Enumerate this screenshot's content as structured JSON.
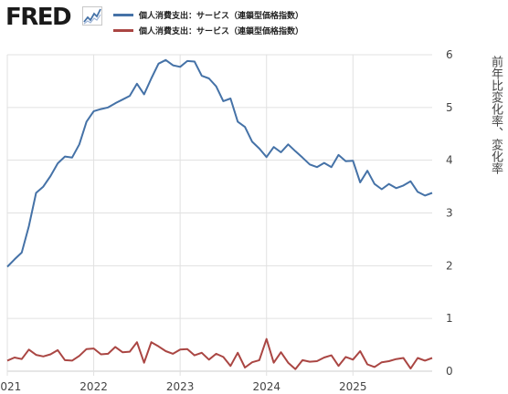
{
  "header": {
    "logo_text": "FRED",
    "logo_icon": "trend-line-chart-icon"
  },
  "colors": {
    "series1": "#4572a7",
    "series2": "#aa4643",
    "grid": "#e1e1e1",
    "axis_text": "#444444"
  },
  "chart_data": {
    "type": "line",
    "title": "",
    "xlabel": "",
    "ylabel": "前年比変化率、変化率",
    "x_ticks": [
      "2021",
      "2022",
      "2023",
      "2024",
      "2025"
    ],
    "y_ticks": [
      "0",
      "1",
      "2",
      "3",
      "4",
      "5",
      "6"
    ],
    "ylim": [
      0,
      6
    ],
    "xlim": [
      "2021-01",
      "2025-12"
    ],
    "grid": true,
    "legend": "top",
    "series": [
      {
        "name": "個人消費支出：サービス（連鎖型価格指数）",
        "x": [
          "2021-01",
          "2021-02",
          "2021-03",
          "2021-04",
          "2021-05",
          "2021-06",
          "2021-07",
          "2021-08",
          "2021-09",
          "2021-10",
          "2021-11",
          "2021-12",
          "2022-01",
          "2022-02",
          "2022-03",
          "2022-04",
          "2022-05",
          "2022-06",
          "2022-07",
          "2022-08",
          "2022-09",
          "2022-10",
          "2022-11",
          "2022-12",
          "2023-01",
          "2023-02",
          "2023-03",
          "2023-04",
          "2023-05",
          "2023-06",
          "2023-07",
          "2023-08",
          "2023-09",
          "2023-10",
          "2023-11",
          "2023-12",
          "2024-01",
          "2024-02",
          "2024-03",
          "2024-04",
          "2024-05",
          "2024-06",
          "2024-07",
          "2024-08",
          "2024-09",
          "2024-10",
          "2024-11",
          "2024-12",
          "2025-01",
          "2025-02",
          "2025-03",
          "2025-04",
          "2025-05",
          "2025-06",
          "2025-07",
          "2025-08",
          "2025-09",
          "2025-10",
          "2025-11",
          "2025-12"
        ],
        "values": [
          1.98,
          2.12,
          2.25,
          2.75,
          3.38,
          3.5,
          3.7,
          3.94,
          4.07,
          4.05,
          4.3,
          4.73,
          4.93,
          4.97,
          5.0,
          5.08,
          5.15,
          5.22,
          5.45,
          5.25,
          5.55,
          5.83,
          5.9,
          5.8,
          5.77,
          5.88,
          5.87,
          5.6,
          5.55,
          5.4,
          5.12,
          5.17,
          4.73,
          4.63,
          4.35,
          4.22,
          4.06,
          4.25,
          4.15,
          4.3,
          4.17,
          4.05,
          3.92,
          3.87,
          3.95,
          3.87,
          4.1,
          3.98,
          3.99,
          3.58,
          3.8,
          3.55,
          3.45,
          3.55,
          3.47,
          3.52,
          3.6,
          3.4,
          3.33,
          3.38
        ]
      },
      {
        "name": "個人消費支出：サービス（連鎖型価格指数）",
        "x": [
          "2021-01",
          "2021-02",
          "2021-03",
          "2021-04",
          "2021-05",
          "2021-06",
          "2021-07",
          "2021-08",
          "2021-09",
          "2021-10",
          "2021-11",
          "2021-12",
          "2022-01",
          "2022-02",
          "2022-03",
          "2022-04",
          "2022-05",
          "2022-06",
          "2022-07",
          "2022-08",
          "2022-09",
          "2022-10",
          "2022-11",
          "2022-12",
          "2023-01",
          "2023-02",
          "2023-03",
          "2023-04",
          "2023-05",
          "2023-06",
          "2023-07",
          "2023-08",
          "2023-09",
          "2023-10",
          "2023-11",
          "2023-12",
          "2024-01",
          "2024-02",
          "2024-03",
          "2024-04",
          "2024-05",
          "2024-06",
          "2024-07",
          "2024-08",
          "2024-09",
          "2024-10",
          "2024-11",
          "2024-12",
          "2025-01",
          "2025-02",
          "2025-03",
          "2025-04",
          "2025-05",
          "2025-06",
          "2025-07",
          "2025-08",
          "2025-09",
          "2025-10",
          "2025-11",
          "2025-12"
        ],
        "values": [
          0.2,
          0.26,
          0.23,
          0.41,
          0.31,
          0.28,
          0.32,
          0.4,
          0.21,
          0.2,
          0.29,
          0.42,
          0.43,
          0.32,
          0.33,
          0.46,
          0.36,
          0.37,
          0.55,
          0.16,
          0.55,
          0.47,
          0.38,
          0.33,
          0.41,
          0.42,
          0.3,
          0.35,
          0.22,
          0.33,
          0.27,
          0.1,
          0.35,
          0.07,
          0.17,
          0.21,
          0.61,
          0.16,
          0.36,
          0.16,
          0.04,
          0.21,
          0.18,
          0.19,
          0.26,
          0.3,
          0.1,
          0.27,
          0.22,
          0.38,
          0.13,
          0.08,
          0.17,
          0.19,
          0.23,
          0.25,
          0.05,
          0.25,
          0.2,
          0.25
        ]
      }
    ]
  }
}
